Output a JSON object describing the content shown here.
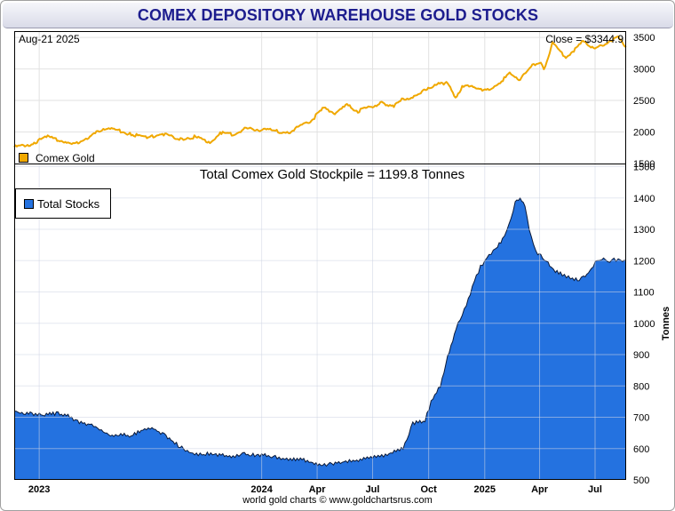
{
  "title": "COMEX DEPOSITORY WAREHOUSE GOLD STOCKS",
  "footer": "world gold charts © www.goldchartsrus.com",
  "chart_data": [
    {
      "type": "line",
      "date_label": "Aug-21  2025",
      "close_label": "Close = $3344.9",
      "legend": "Comex Gold",
      "color": "#f0a800",
      "ylim": [
        1500,
        3600
      ],
      "yticks": [
        1500,
        2000,
        2500,
        3000,
        3500
      ],
      "xlim": [
        "2022-11-21",
        "2025-08-21"
      ],
      "series": [
        {
          "name": "Comex Gold",
          "x": [
            "2022-11-21",
            "2022-12-15",
            "2023-01-15",
            "2023-02-15",
            "2023-03-08",
            "2023-04-05",
            "2023-05-04",
            "2023-06-01",
            "2023-06-29",
            "2023-07-20",
            "2023-08-21",
            "2023-09-15",
            "2023-10-06",
            "2023-10-27",
            "2023-11-15",
            "2023-12-04",
            "2023-12-20",
            "2024-01-15",
            "2024-02-14",
            "2024-03-05",
            "2024-03-21",
            "2024-04-12",
            "2024-04-30",
            "2024-05-20",
            "2024-06-07",
            "2024-07-16",
            "2024-08-05",
            "2024-08-20",
            "2024-09-16",
            "2024-09-26",
            "2024-10-30",
            "2024-11-14",
            "2024-11-25",
            "2024-12-11",
            "2024-12-30",
            "2025-01-24",
            "2025-02-11",
            "2025-02-28",
            "2025-03-20",
            "2025-04-03",
            "2025-04-08",
            "2025-04-22",
            "2025-05-14",
            "2025-06-05",
            "2025-06-13",
            "2025-07-01",
            "2025-07-22",
            "2025-08-08",
            "2025-08-21"
          ],
          "values": [
            1760,
            1800,
            1920,
            1840,
            1810,
            2020,
            2040,
            1960,
            1910,
            1980,
            1890,
            1930,
            1820,
            1990,
            1960,
            2050,
            2040,
            2030,
            1990,
            2100,
            2170,
            2380,
            2300,
            2420,
            2330,
            2460,
            2420,
            2520,
            2590,
            2690,
            2790,
            2560,
            2710,
            2740,
            2640,
            2770,
            2920,
            2840,
            3050,
            3120,
            2970,
            3420,
            3180,
            3370,
            3450,
            3300,
            3440,
            3490,
            3345
          ]
        }
      ]
    },
    {
      "type": "area",
      "title": "Total Comex Gold Stockpile = 1199.8 Tonnes",
      "ylabel": "Tonnes",
      "legend": "Total Stocks",
      "color": "#2472e0",
      "ylim": [
        500,
        1510
      ],
      "yticks": [
        500,
        600,
        700,
        800,
        900,
        1000,
        1100,
        1200,
        1300,
        1400,
        1500
      ],
      "xticklabels": [
        {
          "date": "2023-01-01",
          "label": "2023"
        },
        {
          "date": "2024-01-01",
          "label": "2024"
        },
        {
          "date": "2024-04-01",
          "label": "Apr"
        },
        {
          "date": "2024-07-01",
          "label": "Jul"
        },
        {
          "date": "2024-10-01",
          "label": "Oct"
        },
        {
          "date": "2025-01-01",
          "label": "2025"
        },
        {
          "date": "2025-04-01",
          "label": "Apr"
        },
        {
          "date": "2025-07-01",
          "label": "Jul"
        }
      ],
      "series": [
        {
          "name": "Total Stocks",
          "x": [
            "2022-11-21",
            "2022-12-01",
            "2022-12-20",
            "2023-01-10",
            "2023-02-01",
            "2023-02-20",
            "2023-03-05",
            "2023-03-25",
            "2023-04-10",
            "2023-04-25",
            "2023-05-12",
            "2023-06-01",
            "2023-06-20",
            "2023-07-05",
            "2023-07-25",
            "2023-08-20",
            "2023-09-10",
            "2023-10-01",
            "2023-10-18",
            "2023-11-01",
            "2023-11-15",
            "2023-12-01",
            "2023-12-15",
            "2024-01-01",
            "2024-01-20",
            "2024-02-05",
            "2024-02-20",
            "2024-03-10",
            "2024-03-22",
            "2024-04-10",
            "2024-04-25",
            "2024-05-15",
            "2024-06-05",
            "2024-06-25",
            "2024-07-10",
            "2024-07-28",
            "2024-08-20",
            "2024-09-05",
            "2024-09-25",
            "2024-10-05",
            "2024-10-20",
            "2024-11-01",
            "2024-11-15",
            "2024-11-25",
            "2024-12-05",
            "2024-12-15",
            "2024-12-25",
            "2025-01-01",
            "2025-01-08",
            "2025-01-15",
            "2025-01-22",
            "2025-01-30",
            "2025-02-06",
            "2025-02-13",
            "2025-02-20",
            "2025-02-28",
            "2025-03-08",
            "2025-03-15",
            "2025-03-22",
            "2025-03-29",
            "2025-04-03",
            "2025-04-08",
            "2025-04-15",
            "2025-04-20",
            "2025-04-27",
            "2025-05-05",
            "2025-05-15",
            "2025-05-25",
            "2025-06-05",
            "2025-06-12",
            "2025-06-20",
            "2025-06-28",
            "2025-07-05",
            "2025-07-12",
            "2025-07-18",
            "2025-07-25",
            "2025-08-01",
            "2025-08-08",
            "2025-08-15",
            "2025-08-21"
          ],
          "values": [
            720,
            715,
            712,
            708,
            712,
            702,
            685,
            675,
            665,
            640,
            645,
            640,
            660,
            665,
            645,
            605,
            583,
            583,
            580,
            578,
            572,
            582,
            580,
            580,
            575,
            567,
            565,
            565,
            553,
            548,
            552,
            560,
            562,
            570,
            575,
            583,
            603,
            680,
            690,
            750,
            800,
            890,
            980,
            1030,
            1075,
            1135,
            1180,
            1200,
            1215,
            1230,
            1245,
            1265,
            1300,
            1330,
            1390,
            1400,
            1370,
            1300,
            1250,
            1220,
            1215,
            1205,
            1190,
            1175,
            1165,
            1160,
            1150,
            1143,
            1140,
            1148,
            1160,
            1185,
            1200,
            1205,
            1202,
            1200,
            1203,
            1202,
            1200,
            1200
          ]
        }
      ]
    }
  ]
}
